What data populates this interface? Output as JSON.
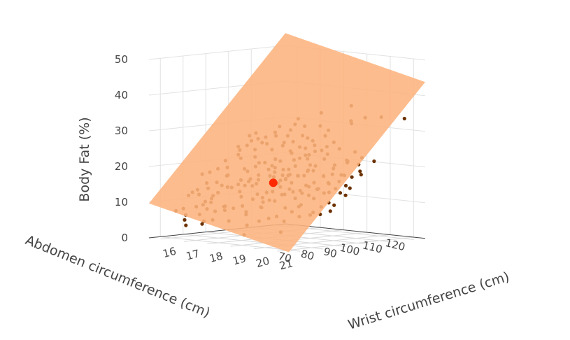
{
  "chart_data": {
    "type": "scatter",
    "subtype": "3d-scatter-with-regression-plane",
    "title": "",
    "x_axis": {
      "title": "Abdomen circumference (cm)",
      "ticks": [
        70,
        80,
        90,
        100,
        110,
        120
      ],
      "range": [
        65,
        125
      ]
    },
    "y_axis": {
      "title": "Wrist circumference (cm)",
      "ticks": [
        16,
        17,
        18,
        19,
        20,
        21
      ],
      "range": [
        15.5,
        21.5
      ]
    },
    "z_axis": {
      "title": "Body Fat (%)",
      "ticks": [
        0,
        10,
        20,
        30,
        40,
        50
      ],
      "range": [
        0,
        50
      ]
    },
    "plane": {
      "intercept": -13.0,
      "abdomen_coef": 0.73,
      "wrist_coef": -1.6,
      "color": "#fdb37d"
    },
    "point_color": "#000000",
    "highlight": {
      "abdomen": 92,
      "wrist": 18.2,
      "fat": 15.5,
      "color": "#ff2a00"
    },
    "series": [
      {
        "name": "observations",
        "points": [
          [
            82.0,
            17.8,
            12.0
          ],
          [
            85.6,
            18.1,
            15.6
          ],
          [
            86.0,
            18.5,
            13.4
          ],
          [
            76.9,
            17.0,
            10.2
          ],
          [
            91.6,
            18.3,
            18.6
          ],
          [
            92.0,
            18.6,
            17.9
          ],
          [
            93.3,
            18.5,
            19.3
          ],
          [
            79.2,
            16.8,
            11.0
          ],
          [
            90.8,
            19.1,
            16.2
          ],
          [
            83.4,
            17.6,
            13.2
          ],
          [
            87.5,
            18.0,
            16.5
          ],
          [
            94.5,
            18.9,
            20.5
          ],
          [
            99.1,
            19.3,
            24.6
          ],
          [
            96.0,
            18.7,
            22.0
          ],
          [
            102.0,
            19.0,
            25.9
          ],
          [
            84.8,
            17.4,
            15.0
          ],
          [
            88.6,
            17.9,
            17.7
          ],
          [
            95.1,
            18.2,
            21.4
          ],
          [
            104.3,
            19.6,
            27.0
          ],
          [
            80.5,
            17.2,
            8.9
          ],
          [
            93.0,
            17.9,
            19.0
          ],
          [
            89.0,
            18.8,
            16.8
          ],
          [
            97.5,
            18.4,
            24.2
          ],
          [
            86.7,
            17.5,
            14.6
          ],
          [
            91.1,
            19.0,
            18.4
          ],
          [
            100.0,
            18.8,
            25.1
          ],
          [
            83.0,
            18.2,
            11.5
          ],
          [
            87.0,
            17.3,
            16.0
          ],
          [
            92.5,
            18.1,
            20.2
          ],
          [
            94.0,
            19.5,
            19.8
          ],
          [
            98.0,
            19.0,
            23.4
          ],
          [
            78.0,
            17.5,
            9.4
          ],
          [
            85.0,
            17.1,
            13.9
          ],
          [
            90.2,
            18.4,
            17.4
          ],
          [
            96.8,
            19.2,
            22.6
          ],
          [
            103.0,
            18.6,
            27.6
          ],
          [
            88.0,
            18.6,
            15.3
          ],
          [
            95.0,
            18.0,
            21.8
          ],
          [
            81.0,
            16.9,
            12.6
          ],
          [
            93.7,
            18.7,
            19.5
          ],
          [
            101.0,
            19.4,
            24.8
          ],
          [
            86.3,
            17.7,
            15.9
          ],
          [
            91.9,
            17.6,
            20.7
          ],
          [
            97.0,
            18.5,
            23.7
          ],
          [
            84.0,
            18.3,
            12.9
          ],
          [
            89.6,
            17.2,
            18.9
          ],
          [
            105.6,
            19.1,
            28.4
          ],
          [
            99.7,
            18.3,
            26.6
          ],
          [
            92.7,
            19.2,
            18.1
          ],
          [
            87.9,
            18.9,
            15.1
          ],
          [
            110.0,
            19.8,
            32.0
          ],
          [
            108.0,
            18.7,
            34.4
          ],
          [
            115.0,
            19.9,
            33.4
          ],
          [
            119.0,
            20.2,
            33.5
          ],
          [
            113.0,
            19.5,
            36.6
          ],
          [
            118.0,
            19.0,
            31.7
          ],
          [
            106.0,
            19.2,
            30.0
          ],
          [
            121.0,
            21.0,
            33.5
          ],
          [
            100.4,
            18.0,
            28.0
          ],
          [
            96.4,
            17.5,
            25.7
          ],
          [
            94.2,
            17.2,
            24.0
          ],
          [
            98.8,
            18.0,
            26.2
          ],
          [
            91.0,
            16.8,
            22.5
          ],
          [
            102.7,
            17.9,
            29.4
          ],
          [
            88.4,
            16.5,
            20.8
          ],
          [
            97.9,
            17.3,
            27.3
          ],
          [
            104.8,
            18.3,
            30.6
          ],
          [
            93.8,
            16.9,
            25.0
          ],
          [
            99.0,
            17.6,
            28.8
          ],
          [
            90.0,
            17.0,
            21.7
          ],
          [
            95.5,
            17.8,
            24.3
          ],
          [
            101.8,
            18.5,
            28.3
          ],
          [
            92.2,
            17.4,
            22.2
          ],
          [
            97.2,
            18.1,
            25.5
          ],
          [
            89.3,
            17.7,
            19.9
          ],
          [
            103.6,
            18.0,
            31.0
          ],
          [
            95.9,
            16.8,
            27.5
          ],
          [
            100.9,
            17.6,
            30.3
          ],
          [
            94.7,
            17.0,
            26.3
          ],
          [
            98.3,
            17.7,
            27.9
          ],
          [
            91.4,
            17.9,
            21.0
          ],
          [
            96.6,
            17.1,
            26.8
          ],
          [
            102.2,
            18.9,
            27.1
          ],
          [
            93.0,
            16.6,
            24.5
          ],
          [
            99.5,
            18.6,
            25.3
          ],
          [
            88.9,
            17.4,
            18.4
          ],
          [
            106.5,
            18.8,
            30.9
          ],
          [
            85.4,
            16.9,
            17.2
          ],
          [
            90.6,
            16.9,
            23.9
          ],
          [
            95.3,
            17.4,
            26.0
          ],
          [
            92.8,
            18.2,
            19.7
          ],
          [
            97.7,
            16.9,
            28.2
          ],
          [
            87.2,
            16.7,
            19.1
          ],
          [
            104.0,
            18.1,
            32.6
          ],
          [
            75.0,
            16.0,
            7.9
          ],
          [
            79.5,
            16.5,
            9.9
          ],
          [
            77.2,
            16.8,
            8.2
          ],
          [
            81.8,
            16.4,
            13.4
          ],
          [
            74.0,
            16.2,
            6.3
          ],
          [
            83.6,
            16.6,
            15.1
          ],
          [
            80.2,
            16.1,
            12.9
          ],
          [
            76.0,
            16.6,
            6.6
          ],
          [
            78.8,
            16.3,
            11.8
          ],
          [
            82.7,
            16.9,
            14.5
          ],
          [
            73.0,
            17.0,
            4.4
          ],
          [
            84.6,
            16.2,
            17.6
          ],
          [
            71.0,
            16.5,
            3.8
          ],
          [
            79.9,
            17.3,
            8.0
          ],
          [
            77.7,
            17.1,
            7.7
          ],
          [
            81.5,
            17.9,
            9.5
          ],
          [
            75.6,
            17.2,
            5.5
          ],
          [
            83.3,
            16.0,
            17.0
          ],
          [
            72.5,
            16.3,
            5.1
          ],
          [
            86.1,
            16.4,
            18.6
          ],
          [
            78.3,
            15.9,
            11.3
          ],
          [
            80.9,
            16.7,
            11.6
          ],
          [
            76.6,
            16.4,
            8.6
          ],
          [
            74.8,
            16.9,
            5.0
          ],
          [
            82.2,
            16.3,
            14.8
          ],
          [
            85.9,
            16.8,
            16.9
          ],
          [
            79.0,
            16.0,
            12.2
          ],
          [
            73.8,
            15.8,
            7.2
          ],
          [
            84.2,
            17.0,
            14.0
          ],
          [
            77.5,
            16.6,
            9.2
          ],
          [
            80.6,
            17.6,
            8.7
          ],
          [
            86.9,
            17.8,
            14.7
          ],
          [
            88.1,
            17.6,
            16.4
          ],
          [
            87.6,
            18.6,
            13.6
          ],
          [
            89.9,
            18.6,
            15.8
          ],
          [
            85.2,
            18.4,
            11.9
          ],
          [
            91.3,
            18.8,
            17.1
          ],
          [
            93.5,
            19.1,
            18.0
          ],
          [
            90.5,
            19.5,
            14.3
          ],
          [
            88.8,
            19.0,
            13.0
          ],
          [
            94.8,
            19.4,
            19.4
          ],
          [
            86.5,
            18.8,
            11.2
          ],
          [
            92.3,
            19.7,
            15.4
          ],
          [
            96.2,
            19.6,
            20.9
          ],
          [
            84.4,
            18.5,
            10.8
          ],
          [
            89.4,
            19.3,
            13.9
          ],
          [
            95.7,
            20.0,
            18.3
          ],
          [
            82.4,
            18.6,
            9.6
          ],
          [
            91.8,
            20.1,
            15.0
          ],
          [
            98.5,
            20.2,
            21.4
          ],
          [
            87.3,
            19.6,
            12.4
          ],
          [
            93.9,
            20.4,
            16.6
          ],
          [
            80.0,
            18.2,
            7.4
          ],
          [
            100.7,
            20.5,
            22.8
          ],
          [
            85.8,
            19.9,
            10.4
          ],
          [
            97.3,
            20.6,
            19.0
          ],
          [
            90.9,
            20.7,
            14.6
          ],
          [
            103.3,
            20.9,
            23.6
          ],
          [
            83.8,
            19.8,
            9.0
          ],
          [
            88.3,
            20.3,
            12.8
          ],
          [
            95.2,
            21.0,
            16.4
          ],
          [
            78.6,
            18.9,
            6.1
          ],
          [
            81.2,
            19.4,
            7.6
          ],
          [
            86.4,
            20.8,
            10.9
          ],
          [
            99.4,
            21.2,
            20.3
          ],
          [
            92.0,
            21.3,
            14.1
          ],
          [
            76.3,
            18.6,
            4.9
          ],
          [
            84.9,
            20.6,
            9.3
          ],
          [
            91.5,
            20.0,
            16.8
          ],
          [
            94.3,
            20.8,
            17.5
          ],
          [
            79.7,
            19.2,
            7.0
          ],
          [
            89.0,
            21.1,
            11.4
          ],
          [
            97.8,
            21.4,
            19.6
          ],
          [
            72.0,
            18.9,
            2.7
          ],
          [
            101.6,
            20.1,
            25.7
          ],
          [
            93.2,
            19.8,
            19.9
          ],
          [
            87.1,
            20.2,
            13.7
          ],
          [
            82.9,
            19.6,
            10.0
          ],
          [
            90.3,
            19.0,
            18.2
          ],
          [
            96.9,
            20.3,
            20.6
          ],
          [
            85.5,
            19.2,
            13.3
          ],
          [
            94.9,
            19.5,
            21.2
          ],
          [
            80.7,
            18.8,
            9.7
          ],
          [
            98.9,
            20.7,
            22.4
          ],
          [
            88.5,
            18.4,
            17.8
          ],
          [
            92.6,
            20.5,
            17.0
          ],
          [
            86.8,
            19.4,
            14.9
          ],
          [
            95.6,
            20.9,
            19.2
          ],
          [
            83.1,
            18.9,
            11.7
          ],
          [
            90.0,
            19.8,
            16.0
          ],
          [
            97.0,
            19.9,
            23.0
          ],
          [
            84.7,
            20.1,
            11.1
          ],
          [
            100.2,
            19.7,
            26.1
          ],
          [
            89.7,
            20.6,
            14.4
          ],
          [
            78.0,
            18.4,
            8.4
          ],
          [
            93.6,
            20.2,
            18.7
          ],
          [
            99.8,
            21.1,
            22.1
          ],
          [
            81.9,
            20.3,
            8.1
          ],
          [
            96.5,
            19.3,
            23.8
          ],
          [
            87.7,
            21.0,
            12.1
          ],
          [
            91.7,
            20.9,
            15.7
          ],
          [
            74.5,
            18.0,
            5.8
          ],
          [
            102.5,
            21.5,
            23.1
          ],
          [
            95.8,
            21.2,
            18.9
          ],
          [
            83.9,
            21.0,
            9.1
          ],
          [
            98.1,
            20.8,
            22.9
          ],
          [
            86.2,
            20.0,
            14.2
          ],
          [
            89.2,
            20.4,
            15.5
          ],
          [
            92.9,
            21.4,
            16.1
          ],
          [
            79.3,
            19.9,
            6.7
          ],
          [
            94.4,
            20.5,
            19.3
          ],
          [
            85.3,
            21.3,
            10.1
          ],
          [
            101.3,
            20.8,
            25.3
          ],
          [
            88.2,
            19.1,
            17.3
          ],
          [
            91.2,
            19.6,
            18.5
          ],
          [
            97.4,
            20.0,
            24.4
          ],
          [
            82.6,
            20.7,
            8.8
          ],
          [
            76.8,
            20.0,
            3.9
          ],
          [
            95.4,
            19.0,
            22.7
          ],
          [
            90.7,
            21.2,
            14.8
          ]
        ]
      }
    ]
  }
}
